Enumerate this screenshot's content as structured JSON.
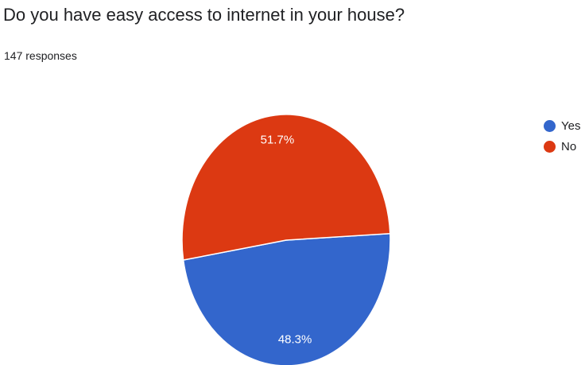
{
  "question": {
    "title": "Do you have easy access to internet in your house?",
    "responses": "147 responses"
  },
  "chart_data": {
    "type": "pie",
    "title": "Do you have easy access to internet in your house?",
    "subtitle": "147 responses",
    "legend_position": "right",
    "slices": [
      {
        "name": "Yes",
        "value": 48.3,
        "label": "48.3%",
        "color": "#3366cc"
      },
      {
        "name": "No",
        "value": 51.7,
        "label": "51.7%",
        "color": "#dc3912"
      }
    ]
  }
}
